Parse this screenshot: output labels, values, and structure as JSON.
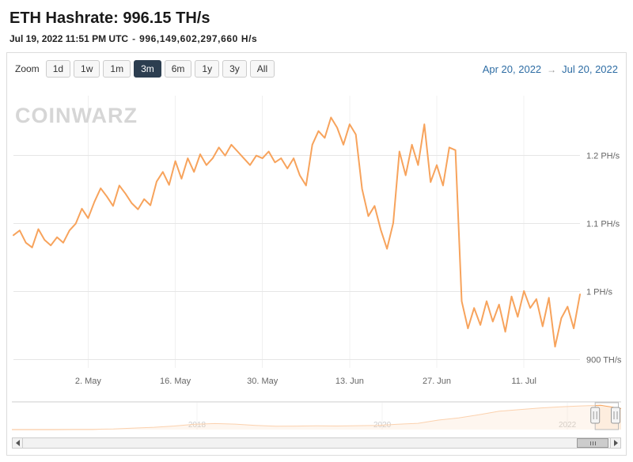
{
  "header": {
    "title": "ETH Hashrate: 996.15 TH/s",
    "timestamp": "Jul 19, 2022 11:51 PM UTC",
    "separator": "-",
    "hashrate_full": "996,149,602,297,660 H/s"
  },
  "toolbar": {
    "zoom_label": "Zoom",
    "buttons": [
      "1d",
      "1w",
      "1m",
      "3m",
      "6m",
      "1y",
      "3y",
      "All"
    ],
    "selected": "3m",
    "range_from": "Apr 20, 2022",
    "range_arrow": "→",
    "range_to": "Jul 20, 2022"
  },
  "watermark": "CoinWarz",
  "colors": {
    "line": "#f7a35c",
    "selected_button_bg": "#2c3e50",
    "range_text": "#2e6da4",
    "grid": "#e6e6e6"
  },
  "chart_data": {
    "type": "line",
    "title": "ETH Hashrate",
    "unit": "TH/s",
    "color": "#f7a35c",
    "x_start": "2022-04-20",
    "x_end": "2022-07-20",
    "values": [
      1083,
      1090,
      1072,
      1065,
      1092,
      1076,
      1068,
      1080,
      1072,
      1090,
      1100,
      1122,
      1108,
      1132,
      1152,
      1140,
      1126,
      1156,
      1144,
      1130,
      1121,
      1136,
      1127,
      1162,
      1176,
      1157,
      1192,
      1166,
      1196,
      1176,
      1202,
      1186,
      1196,
      1212,
      1200,
      1216,
      1206,
      1196,
      1186,
      1200,
      1196,
      1206,
      1190,
      1196,
      1181,
      1196,
      1171,
      1156,
      1216,
      1236,
      1226,
      1256,
      1241,
      1216,
      1246,
      1231,
      1151,
      1111,
      1126,
      1091,
      1063,
      1101,
      1206,
      1171,
      1216,
      1186,
      1246,
      1161,
      1186,
      1156,
      1212,
      1208,
      986,
      946,
      976,
      951,
      986,
      956,
      981,
      941,
      993,
      963,
      1001,
      976,
      989,
      949,
      991,
      919,
      961,
      978,
      946,
      996
    ],
    "x_ticks": [
      {
        "day": 12,
        "label": "2. May"
      },
      {
        "day": 26,
        "label": "16. May"
      },
      {
        "day": 40,
        "label": "30. May"
      },
      {
        "day": 54,
        "label": "13. Jun"
      },
      {
        "day": 68,
        "label": "27. Jun"
      },
      {
        "day": 82,
        "label": "11. Jul"
      }
    ],
    "y_ticks": [
      {
        "value": 1200,
        "label": "1.2 PH/s"
      },
      {
        "value": 1100,
        "label": "1.1 PH/s"
      },
      {
        "value": 1000,
        "label": "1 PH/s"
      },
      {
        "value": 900,
        "label": "900 TH/s"
      }
    ],
    "ylim": [
      888,
      1288
    ],
    "legend": "off",
    "grid": "on",
    "navigator": {
      "type": "area",
      "x_start": 2016.0,
      "x_end": 2022.58,
      "values": [
        2,
        3,
        5,
        7,
        12,
        25,
        70,
        110,
        170,
        250,
        285,
        260,
        200,
        158,
        165,
        178,
        168,
        182,
        196,
        250,
        295,
        450,
        550,
        700,
        870,
        950,
        1020,
        1080,
        1120,
        1150,
        996
      ],
      "x_ticks": [
        {
          "x": 2018,
          "label": "2018"
        },
        {
          "x": 2020,
          "label": "2020"
        },
        {
          "x": 2022,
          "label": "2022"
        }
      ],
      "selected_range": [
        2022.3,
        2022.55
      ]
    }
  }
}
